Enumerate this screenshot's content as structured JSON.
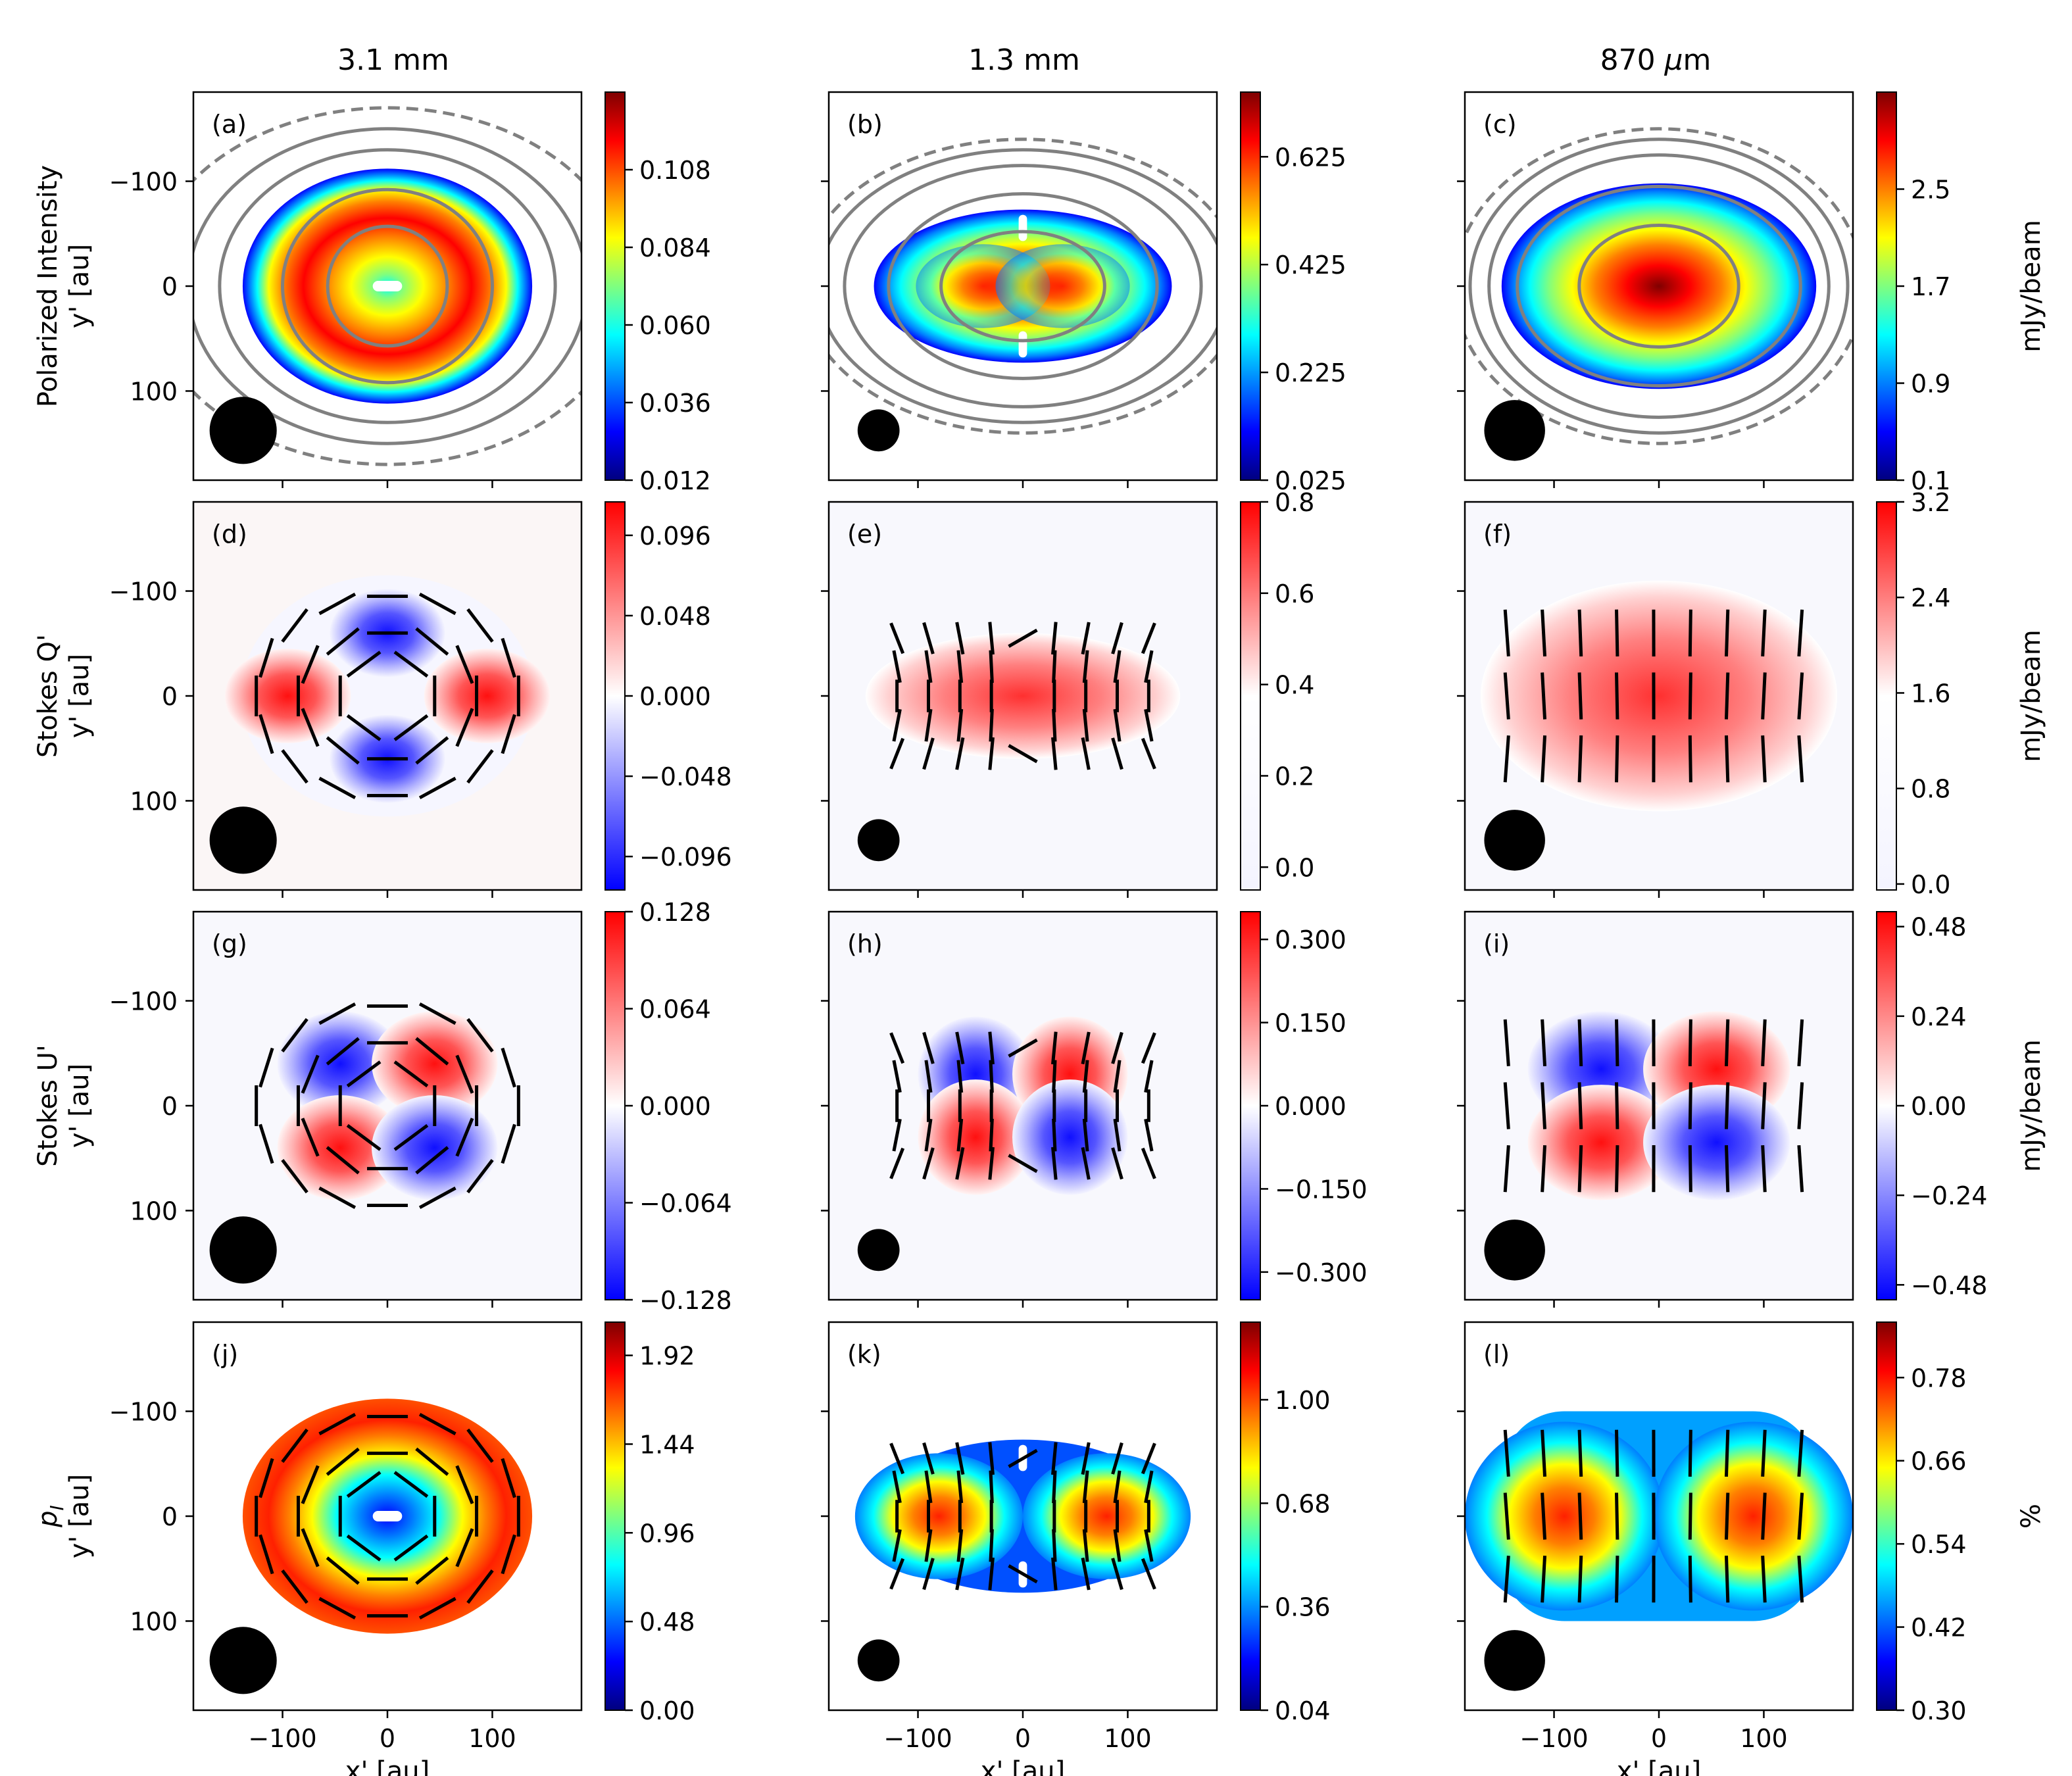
{
  "figure": {
    "columns": [
      {
        "title": "3.1 mm"
      },
      {
        "title": "1.3 mm"
      },
      {
        "title_main": "870 ",
        "title_mu": "μ",
        "title_unit": "m"
      }
    ],
    "rows": [
      {
        "label_lines": [
          "Polarized Intensity",
          "y' [au]"
        ],
        "cbar_unit": "mJy/beam"
      },
      {
        "label_lines": [
          "Stokes Q'",
          "y' [au]"
        ],
        "cbar_unit": "mJy/beam"
      },
      {
        "label_lines": [
          "Stokes U'",
          "y' [au]"
        ],
        "cbar_unit": "mJy/beam"
      },
      {
        "label_lines": [
          "p",
          "I",
          "y' [au]"
        ],
        "cbar_unit": "%"
      }
    ],
    "xlabel": "x' [au]",
    "x_ticks": [
      "−100",
      "0",
      "100"
    ],
    "y_ticks": [
      "100",
      "0",
      "−100"
    ]
  },
  "chart_data": [
    {
      "panel": "(a)",
      "type": "heatmap",
      "colormap": "jet",
      "quantity": "Polarized Intensity",
      "wavelength": "3.1 mm",
      "xlim": [
        -185,
        185
      ],
      "ylim": [
        -185,
        185
      ],
      "cbar_ticks": [
        "0.012",
        "0.036",
        "0.060",
        "0.084",
        "0.108"
      ],
      "cbar_range": [
        0.012,
        0.132
      ],
      "contours": true,
      "vectors": false
    },
    {
      "panel": "(b)",
      "type": "heatmap",
      "colormap": "jet",
      "quantity": "Polarized Intensity",
      "wavelength": "1.3 mm",
      "xlim": [
        -185,
        185
      ],
      "ylim": [
        -185,
        185
      ],
      "cbar_ticks": [
        "0.025",
        "0.225",
        "0.425",
        "0.625"
      ],
      "cbar_range": [
        0.025,
        0.745
      ],
      "contours": true,
      "vectors": false
    },
    {
      "panel": "(c)",
      "type": "heatmap",
      "colormap": "jet",
      "quantity": "Polarized Intensity",
      "wavelength": "870 μm",
      "xlim": [
        -185,
        185
      ],
      "ylim": [
        -185,
        185
      ],
      "cbar_ticks": [
        "0.1",
        "0.9",
        "1.7",
        "2.5"
      ],
      "cbar_range": [
        0.1,
        3.3
      ],
      "contours": true,
      "vectors": false
    },
    {
      "panel": "(d)",
      "type": "heatmap",
      "colormap": "bwr",
      "quantity": "Stokes Q'",
      "wavelength": "3.1 mm",
      "xlim": [
        -185,
        185
      ],
      "ylim": [
        -185,
        185
      ],
      "cbar_ticks": [
        "−0.096",
        "−0.048",
        "0.000",
        "0.048",
        "0.096"
      ],
      "cbar_range": [
        -0.116,
        0.116
      ],
      "vectors": true
    },
    {
      "panel": "(e)",
      "type": "heatmap",
      "colormap": "bwr",
      "quantity": "Stokes Q'",
      "wavelength": "1.3 mm",
      "xlim": [
        -185,
        185
      ],
      "ylim": [
        -185,
        185
      ],
      "cbar_ticks": [
        "0.0",
        "0.2",
        "0.4",
        "0.6",
        "0.8"
      ],
      "cbar_range": [
        -0.05,
        0.8
      ],
      "vectors": true
    },
    {
      "panel": "(f)",
      "type": "heatmap",
      "colormap": "bwr",
      "quantity": "Stokes Q'",
      "wavelength": "870 μm",
      "xlim": [
        -185,
        185
      ],
      "ylim": [
        -185,
        185
      ],
      "cbar_ticks": [
        "0.0",
        "0.8",
        "1.6",
        "2.4",
        "3.2"
      ],
      "cbar_range": [
        -0.05,
        3.2
      ],
      "vectors": true
    },
    {
      "panel": "(g)",
      "type": "heatmap",
      "colormap": "bwr",
      "quantity": "Stokes U'",
      "wavelength": "3.1 mm",
      "xlim": [
        -185,
        185
      ],
      "ylim": [
        -185,
        185
      ],
      "cbar_ticks": [
        "−0.128",
        "−0.064",
        "0.000",
        "0.064",
        "0.128"
      ],
      "cbar_range": [
        -0.128,
        0.128
      ],
      "vectors": true
    },
    {
      "panel": "(h)",
      "type": "heatmap",
      "colormap": "bwr",
      "quantity": "Stokes U'",
      "wavelength": "1.3 mm",
      "xlim": [
        -185,
        185
      ],
      "ylim": [
        -185,
        185
      ],
      "cbar_ticks": [
        "−0.300",
        "−0.150",
        "0.000",
        "0.150",
        "0.300"
      ],
      "cbar_range": [
        -0.35,
        0.35
      ],
      "vectors": true
    },
    {
      "panel": "(i)",
      "type": "heatmap",
      "colormap": "bwr",
      "quantity": "Stokes U'",
      "wavelength": "870 μm",
      "xlim": [
        -185,
        185
      ],
      "ylim": [
        -185,
        185
      ],
      "cbar_ticks": [
        "−0.48",
        "−0.24",
        "0.00",
        "0.24",
        "0.48"
      ],
      "cbar_range": [
        -0.52,
        0.52
      ],
      "vectors": true
    },
    {
      "panel": "(j)",
      "type": "heatmap",
      "colormap": "jet",
      "quantity": "p_I",
      "wavelength": "3.1 mm",
      "xlim": [
        -185,
        185
      ],
      "ylim": [
        -185,
        185
      ],
      "cbar_ticks": [
        "0.00",
        "0.48",
        "0.96",
        "1.44",
        "1.92"
      ],
      "cbar_range": [
        0.0,
        2.1
      ],
      "vectors": true
    },
    {
      "panel": "(k)",
      "type": "heatmap",
      "colormap": "jet",
      "quantity": "p_I",
      "wavelength": "1.3 mm",
      "xlim": [
        -185,
        185
      ],
      "ylim": [
        -185,
        185
      ],
      "cbar_ticks": [
        "0.04",
        "0.36",
        "0.68",
        "1.00"
      ],
      "cbar_range": [
        0.04,
        1.24
      ],
      "vectors": true
    },
    {
      "panel": "(l)",
      "type": "heatmap",
      "colormap": "jet",
      "quantity": "p_I",
      "wavelength": "870 μm",
      "xlim": [
        -185,
        185
      ],
      "ylim": [
        -185,
        185
      ],
      "cbar_ticks": [
        "0.30",
        "0.42",
        "0.54",
        "0.66",
        "0.78"
      ],
      "cbar_range": [
        0.3,
        0.86
      ],
      "vectors": true
    }
  ]
}
